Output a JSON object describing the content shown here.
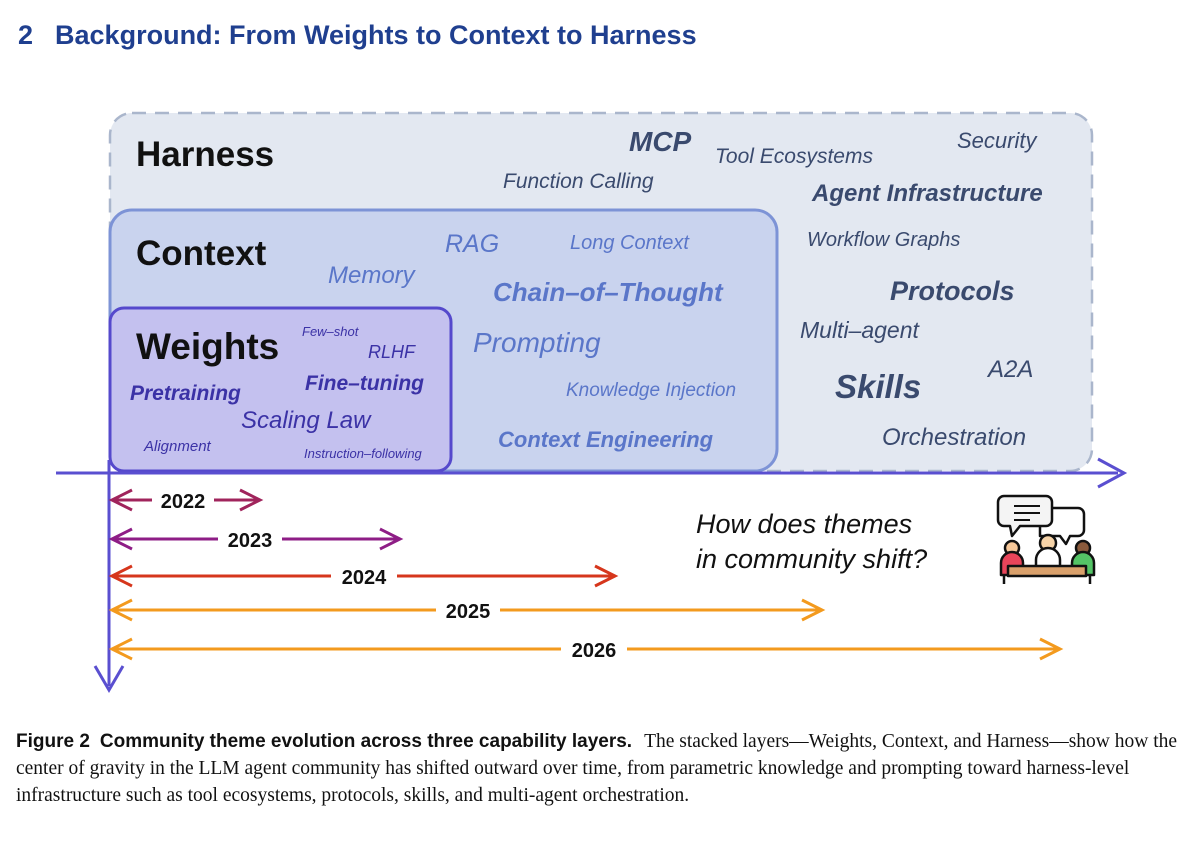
{
  "section": {
    "number": "2",
    "title": "Background: From Weights to Context to Harness"
  },
  "figure": {
    "layers": {
      "harness": "Harness",
      "context": "Context",
      "weights": "Weights"
    },
    "terms": {
      "mcp": "MCP",
      "tool_ecosystems": "Tool Ecosystems",
      "security": "Security",
      "function_calling": "Function Calling",
      "agent_infrastructure": "Agent Infrastructure",
      "rag": "RAG",
      "long_context": "Long Context",
      "workflow_graphs": "Workflow Graphs",
      "memory": "Memory",
      "chain_of_thought": "Chain–of–Thought",
      "protocols": "Protocols",
      "few_shot": "Few–shot",
      "multi_agent": "Multi–agent",
      "rlhf": "RLHF",
      "prompting": "Prompting",
      "a2a": "A2A",
      "pretraining": "Pretraining",
      "fine_tuning": "Fine–tuning",
      "skills": "Skills",
      "knowledge_injection": "Knowledge Injection",
      "scaling_law": "Scaling Law",
      "alignment": "Alignment",
      "instruction_following": "Instruction–following",
      "context_engineering": "Context Engineering",
      "orchestration": "Orchestration"
    },
    "years": [
      "2022",
      "2023",
      "2024",
      "2025",
      "2026"
    ],
    "question_line1": "How does themes",
    "question_line2": "in community shift?",
    "colors": {
      "harness_fill": "#e3e8f1",
      "context_fill": "#c9d3ee",
      "weights_fill": "#c4c1ef",
      "axis": "#5a4fd0",
      "year_2022": "#a0245c",
      "year_2023": "#8e1d86",
      "year_2024": "#d6361c",
      "year_2025": "#f39a1e",
      "year_2026": "#f39a1e"
    }
  },
  "caption": {
    "label": "Figure 2",
    "title": "Community theme evolution across three capability layers.",
    "text": "The stacked layers—Weights, Context, and Harness—show how the center of gravity in the LLM agent community has shifted outward over time, from parametric knowledge and prompting toward harness-level infrastructure such as tool ecosystems, protocols, skills, and multi-agent orchestration."
  }
}
